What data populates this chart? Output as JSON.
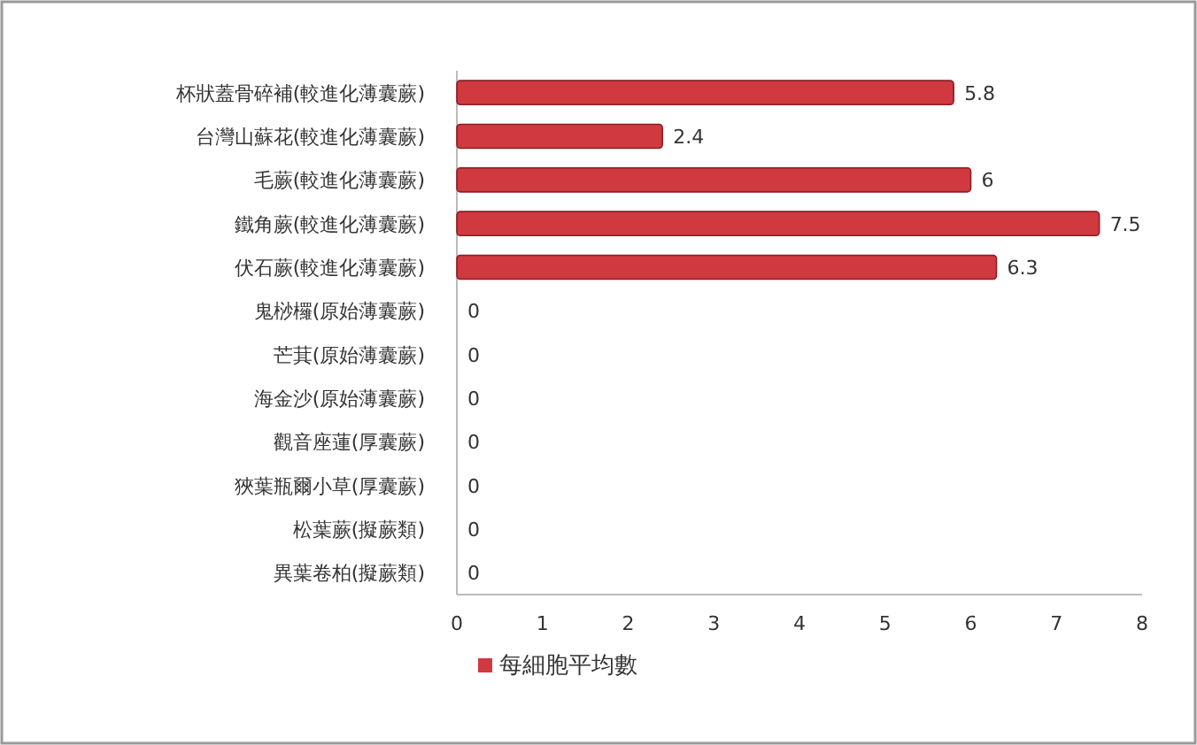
{
  "chart_data": {
    "type": "bar",
    "orientation": "horizontal",
    "categories": [
      "杯狀蓋骨碎補(較進化薄囊蕨)",
      "台灣山蘇花(較進化薄囊蕨)",
      "毛蕨(較進化薄囊蕨)",
      "鐵角蕨(較進化薄囊蕨)",
      "伏石蕨(較進化薄囊蕨)",
      "鬼桫欏(原始薄囊蕨)",
      "芒萁(原始薄囊蕨)",
      "海金沙(原始薄囊蕨)",
      "觀音座蓮(厚囊蕨)",
      "狹葉瓶爾小草(厚囊蕨)",
      "松葉蕨(擬蕨類)",
      "異葉卷柏(擬蕨類)"
    ],
    "series": [
      {
        "name": "每細胞平均數",
        "color": "#d0393f",
        "values": [
          5.8,
          2.4,
          6,
          7.5,
          6.3,
          0,
          0,
          0,
          0,
          0,
          0,
          0
        ]
      }
    ],
    "xlim": [
      0,
      8
    ],
    "xticks": [
      0,
      1,
      2,
      3,
      4,
      5,
      6,
      7,
      8
    ],
    "data_labels": true,
    "legend": "bottom",
    "grid": false
  }
}
